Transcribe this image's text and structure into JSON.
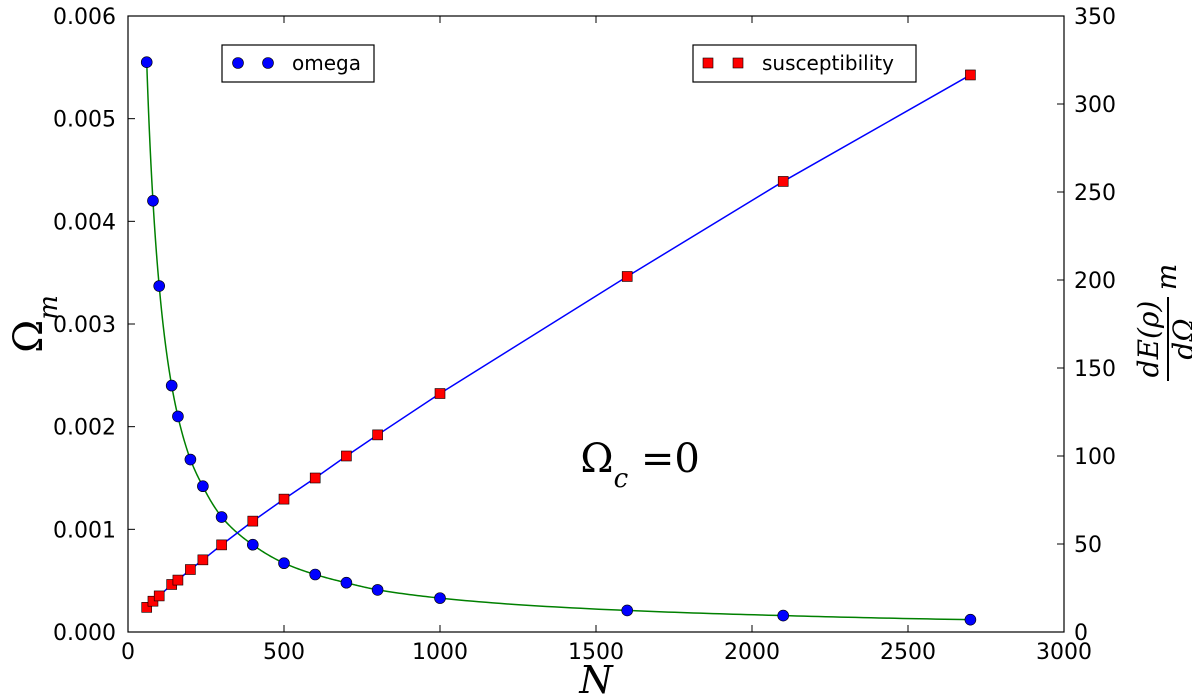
{
  "chart_data": {
    "type": "scatter",
    "x": [
      60,
      80,
      100,
      140,
      160,
      200,
      240,
      300,
      400,
      500,
      600,
      700,
      800,
      1000,
      1600,
      2100,
      2700
    ],
    "xlabel": "N",
    "xlim": [
      0,
      3000
    ],
    "xticks": [
      "0",
      "500",
      "1000",
      "1500",
      "2000",
      "2500",
      "3000"
    ],
    "series": [
      {
        "name": "omega",
        "axis": "left",
        "marker": "circle",
        "marker_color": "#0000ff",
        "line_color": "#008000",
        "values": [
          0.00555,
          0.0042,
          0.00337,
          0.0024,
          0.0021,
          0.00168,
          0.00142,
          0.00112,
          0.00085,
          0.00067,
          0.00056,
          0.00048,
          0.00041,
          0.00033,
          0.00021,
          0.00016,
          0.00012
        ]
      },
      {
        "name": "susceptibility",
        "axis": "right",
        "marker": "square",
        "marker_color": "#ff0000",
        "line_color": "#0000ff",
        "values": [
          14,
          17.5,
          20.5,
          27,
          29.5,
          35.5,
          41,
          49.5,
          63,
          75.5,
          87.5,
          100,
          112,
          135.5,
          202,
          256,
          316.5
        ]
      }
    ],
    "y_left": {
      "label": "Ω_m",
      "lim": [
        0,
        0.006
      ],
      "ticks": [
        "0.000",
        "0.001",
        "0.002",
        "0.003",
        "0.004",
        "0.005",
        "0.006"
      ]
    },
    "y_right": {
      "label_num": "dE(ρ)",
      "label_den": "dΩ",
      "label_suffix": "m",
      "lim": [
        0,
        350
      ],
      "ticks": [
        "0",
        "50",
        "100",
        "150",
        "200",
        "250",
        "300",
        "350"
      ]
    },
    "annotation": "Ω_c =0",
    "grid": false,
    "legend_left_placement": "top-left",
    "legend_right_placement": "top-right"
  }
}
